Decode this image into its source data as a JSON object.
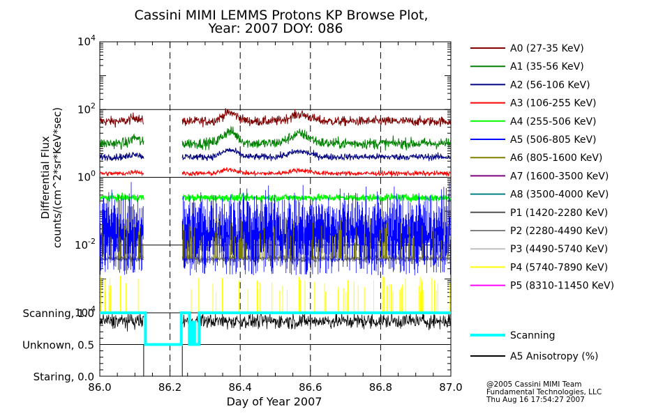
{
  "chart_data": [
    {
      "type": "line",
      "title": "Cassini MIMI LEMMS Protons KP Browse Plot,",
      "subtitle": "Year: 2007 DOY: 086",
      "ylabel": "Differential Flux",
      "ylabel2": "counts/(cm^2*sr*KeV*sec)",
      "yscale": "log",
      "ylim": [
        0.0001,
        10000
      ],
      "xlim": [
        86.0,
        87.0
      ],
      "y_ticks": [
        {
          "value": 0.0001,
          "base": "10",
          "exp": "-4"
        },
        {
          "value": 0.01,
          "base": "10",
          "exp": "-2"
        },
        {
          "value": 1,
          "base": "10",
          "exp": "0"
        },
        {
          "value": 100,
          "base": "10",
          "exp": "2"
        },
        {
          "value": 10000,
          "base": "10",
          "exp": "4"
        }
      ],
      "gridlines_y": [
        1,
        100,
        0.01
      ],
      "vertical_dashed_x": [
        86.2,
        86.4,
        86.6,
        86.8
      ],
      "data_gaps": [
        [
          86.125,
          86.235
        ]
      ],
      "legend_placement": "right",
      "series": [
        {
          "name": "A0 (27-35 KeV)",
          "color": "#800000",
          "level": 45
        },
        {
          "name": "A1 (35-56 KeV)",
          "color": "#008000",
          "level": 10
        },
        {
          "name": "A2 (56-106 KeV)",
          "color": "#000080",
          "level": 4
        },
        {
          "name": "A3 (106-255 KeV)",
          "color": "#ff0000",
          "level": 1.3
        },
        {
          "name": "A4 (255-506 KeV)",
          "color": "#00ff00",
          "level": 0.25
        },
        {
          "name": "A5 (506-805 KeV)",
          "color": "#0000ff",
          "level": 0.04
        },
        {
          "name": "A6 (805-1600 KeV)",
          "color": "#808000",
          "level": 0.01
        },
        {
          "name": "A7 (1600-3500 KeV)",
          "color": "#800080",
          "level": null
        },
        {
          "name": "A8 (3500-4000 KeV)",
          "color": "#008080",
          "level": null
        },
        {
          "name": "P1 (1420-2280 KeV)",
          "color": "#505050",
          "level": 0.004
        },
        {
          "name": "P2 (2280-4490 KeV)",
          "color": "#808080",
          "level": 0.004
        },
        {
          "name": "P3 (4490-5740 KeV)",
          "color": "#c0c0c0",
          "level": null
        },
        {
          "name": "P4 (5740-7890 KeV)",
          "color": "#ffff00",
          "level": 0.0002
        },
        {
          "name": "P5 (8310-11450 KeV)",
          "color": "#ff00ff",
          "level": null
        }
      ]
    },
    {
      "type": "line",
      "xlabel": "Day of Year 2007",
      "ylim": [
        0,
        1
      ],
      "xlim": [
        86.0,
        87.0
      ],
      "y_ticks": [
        {
          "value": 1.0,
          "label": "Scanning, 1.0"
        },
        {
          "value": 0.5,
          "label": "Unknown, 0.5"
        },
        {
          "value": 0.0,
          "label": "Staring, 0.0"
        }
      ],
      "x_ticks": [
        "86.0",
        "86.2",
        "86.4",
        "86.6",
        "86.8",
        "87.0"
      ],
      "gridlines_y": [
        0.5
      ],
      "vertical_dashed_x": [
        86.2,
        86.4,
        86.6,
        86.8
      ],
      "series": [
        {
          "name": "Scanning",
          "color": "#00ffff",
          "x": [
            86.0,
            86.13,
            86.13,
            86.232,
            86.232,
            86.255,
            86.255,
            86.262,
            86.262,
            86.27,
            86.27,
            86.283,
            86.283,
            87.0
          ],
          "y": [
            1.0,
            1.0,
            0.5,
            0.5,
            1.0,
            1.0,
            0.5,
            0.5,
            0.85,
            0.85,
            0.5,
            0.5,
            1.0,
            1.0
          ]
        },
        {
          "name": "A5 Anisotropy (%)",
          "color": "#000000",
          "level": 0.87
        }
      ]
    }
  ],
  "credits": [
    "@2005 Cassini MIMI Team",
    "Fundamental Technologies, LLC",
    "Thu Aug 16 17:54:27 2007"
  ]
}
